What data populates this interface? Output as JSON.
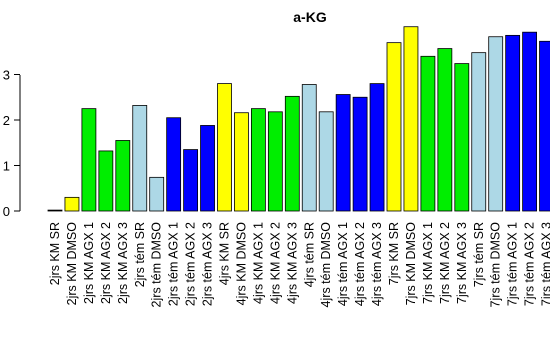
{
  "chart_data": {
    "type": "bar",
    "title": "a-KG",
    "xlabel": "",
    "ylabel": "",
    "ylim": [
      0,
      4
    ],
    "yticks": [
      0,
      1,
      2,
      3
    ],
    "grid": false,
    "categories": [
      "2jrs KM SR",
      "2jrs KM DMSO",
      "2jrs KM AGX 1",
      "2jrs KM AGX 2",
      "2jrs KM AGX 3",
      "2jrs tém SR",
      "2jrs tém DMSO",
      "2jrs tém AGX 1",
      "2jrs tém AGX 2",
      "2jrs tém AGX 3",
      "4jrs KM SR",
      "4jrs KM DMSO",
      "4jrs KM AGX 1",
      "4jrs KM AGX 2",
      "4jrs KM AGX 3",
      "4jrs tém SR",
      "4jrs tém DMSO",
      "4jrs tém AGX 1",
      "4jrs tém AGX 2",
      "4jrs tém AGX 3",
      "7jrs KM SR",
      "7jrs KM DMSO",
      "7jrs KM AGX 1",
      "7jrs KM AGX 2",
      "7jrs KM AGX 3",
      "7jrs tém SR",
      "7jrs tém DMSO",
      "7jrs tém AGX 1",
      "7jrs tém AGX 2",
      "7jrs tém AGX 3"
    ],
    "values": [
      0.02,
      0.3,
      2.25,
      1.32,
      1.55,
      2.32,
      0.74,
      2.05,
      1.35,
      1.88,
      2.8,
      2.16,
      2.25,
      2.18,
      2.52,
      2.78,
      2.18,
      2.56,
      2.5,
      2.8,
      3.7,
      4.05,
      3.4,
      3.57,
      3.24,
      3.48,
      3.83,
      3.86,
      3.93,
      3.73
    ],
    "colors": [
      "#000000",
      "#ffff00",
      "#00ee00",
      "#00ee00",
      "#00ee00",
      "#add8e6",
      "#add8e6",
      "#0000ff",
      "#0000ff",
      "#0000ff",
      "#ffff00",
      "#ffff00",
      "#00ee00",
      "#00ee00",
      "#00ee00",
      "#add8e6",
      "#add8e6",
      "#0000ff",
      "#0000ff",
      "#0000ff",
      "#ffff00",
      "#ffff00",
      "#00ee00",
      "#00ee00",
      "#00ee00",
      "#add8e6",
      "#add8e6",
      "#0000ff",
      "#0000ff",
      "#0000ff"
    ]
  }
}
